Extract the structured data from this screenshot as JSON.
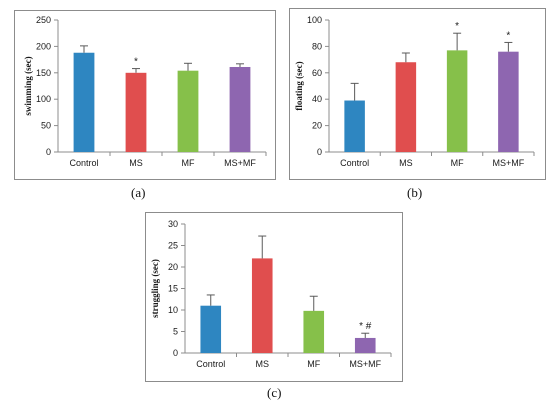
{
  "chart_data": [
    {
      "type": "bar",
      "categories": [
        "Control",
        "MS",
        "MF",
        "MS+MF"
      ],
      "values": [
        188,
        150,
        154,
        161
      ],
      "errors": [
        13,
        8,
        14,
        6
      ],
      "annotations": [
        "",
        "*",
        "",
        ""
      ],
      "colors": [
        "#2e86c1",
        "#e04e4e",
        "#86c04a",
        "#8e66b0"
      ],
      "ylabel": "swimming (sec)",
      "ylim": [
        0,
        250
      ],
      "yticks": [
        0,
        50,
        100,
        150,
        200,
        250
      ],
      "panel_label": "(a)"
    },
    {
      "type": "bar",
      "categories": [
        "Control",
        "MS",
        "MF",
        "MS+MF"
      ],
      "values": [
        39,
        68,
        77,
        76
      ],
      "errors": [
        13,
        7,
        13,
        7
      ],
      "annotations": [
        "",
        "",
        "*",
        "*"
      ],
      "colors": [
        "#2e86c1",
        "#e04e4e",
        "#86c04a",
        "#8e66b0"
      ],
      "ylabel": "floating (sec)",
      "ylim": [
        0,
        100
      ],
      "yticks": [
        0,
        20,
        40,
        60,
        80,
        100
      ],
      "panel_label": "(b)"
    },
    {
      "type": "bar",
      "categories": [
        "Control",
        "MS",
        "MF",
        "MS+MF"
      ],
      "values": [
        11,
        22,
        9.8,
        3.5
      ],
      "errors": [
        2.5,
        5.2,
        3.4,
        1.1
      ],
      "annotations": [
        "",
        "",
        "",
        "* #"
      ],
      "colors": [
        "#2e86c1",
        "#e04e4e",
        "#86c04a",
        "#8e66b0"
      ],
      "ylabel": "struggling (sec)",
      "ylim": [
        0,
        30
      ],
      "yticks": [
        0,
        5,
        10,
        15,
        20,
        25,
        30
      ],
      "panel_label": "(c)"
    }
  ]
}
